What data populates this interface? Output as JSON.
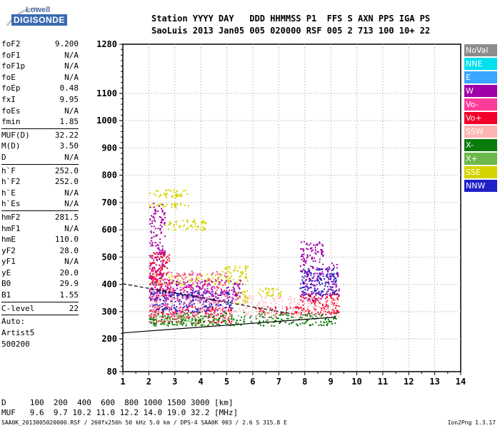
{
  "logo": {
    "line1": "Lowell",
    "line2": "DIGISONDE"
  },
  "header": {
    "line1": "Station YYYY DAY   DDD HHMMSS P1  FFS S AXN PPS IGA PS",
    "line2": "SaoLuis 2013 Jan05 005 020000 RSF 005 2 713 100 10+ 22"
  },
  "params": [
    {
      "name": "foF2",
      "value": "9.200"
    },
    {
      "name": "foF1",
      "value": "N/A"
    },
    {
      "name": "foF1p",
      "value": "N/A"
    },
    {
      "name": "foE",
      "value": "N/A"
    },
    {
      "name": "foEp",
      "value": "0.48"
    },
    {
      "name": "fxI",
      "value": "9.95"
    },
    {
      "name": "foEs",
      "value": "N/A"
    },
    {
      "name": "fmin",
      "value": "1.85"
    },
    {
      "name": "MUF(D)",
      "value": "32.22"
    },
    {
      "name": "M(D)",
      "value": "3.50"
    },
    {
      "name": "D",
      "value": "N/A"
    },
    {
      "name": "h`F",
      "value": "252.0"
    },
    {
      "name": "h`F2",
      "value": "252.0"
    },
    {
      "name": "h`E",
      "value": "N/A"
    },
    {
      "name": "h`Es",
      "value": "N/A"
    },
    {
      "name": "hmF2",
      "value": "281.5"
    },
    {
      "name": "hmF1",
      "value": "N/A"
    },
    {
      "name": "hmE",
      "value": "110.0"
    },
    {
      "name": "yF2",
      "value": "28.0"
    },
    {
      "name": "yF1",
      "value": "N/A"
    },
    {
      "name": "yE",
      "value": "20.0"
    },
    {
      "name": "B0",
      "value": "29.9"
    },
    {
      "name": "B1",
      "value": "1.55"
    },
    {
      "name": "C-level",
      "value": "22"
    }
  ],
  "auto": {
    "line1": "Auto:",
    "line2": "Artist5",
    "line3": "500200"
  },
  "legend": [
    {
      "label": "NoVal",
      "color": "#8c8c8c"
    },
    {
      "label": "NNE",
      "color": "#00e0f0"
    },
    {
      "label": "E",
      "color": "#3aa6ff"
    },
    {
      "label": "W",
      "color": "#a000a8"
    },
    {
      "label": "Vo-",
      "color": "#ff3c9a"
    },
    {
      "label": "Vo+",
      "color": "#f0002a"
    },
    {
      "label": "SSW",
      "color": "#ffb4b4"
    },
    {
      "label": "X-",
      "color": "#0a7a0a"
    },
    {
      "label": "X+",
      "color": "#6cb84c"
    },
    {
      "label": "SSE",
      "color": "#d4d400"
    },
    {
      "label": "NNW",
      "color": "#2020c8"
    }
  ],
  "chart_data": {
    "type": "scatter",
    "xlabel": "",
    "ylabel": "",
    "xlim": [
      1,
      14
    ],
    "ylim": [
      80,
      1280
    ],
    "x_ticks": [
      1,
      2,
      3,
      4,
      5,
      6,
      7,
      8,
      9,
      10,
      11,
      12,
      13,
      14
    ],
    "y_ticks": [
      80,
      200,
      300,
      400,
      500,
      600,
      700,
      800,
      900,
      1000,
      1100,
      1280
    ],
    "grid": "dotted",
    "legend_position": "right",
    "clusters": [
      {
        "mode": "SSE",
        "color": "#d4d400",
        "x": [
          2.0,
          3.5
        ],
        "y": [
          720,
          750
        ]
      },
      {
        "mode": "SSE",
        "color": "#d4d400",
        "x": [
          2.0,
          3.5
        ],
        "y": [
          680,
          700
        ]
      },
      {
        "mode": "SSE",
        "color": "#d4d400",
        "x": [
          2.0,
          5.8
        ],
        "y": [
          400,
          440
        ]
      },
      {
        "mode": "SSE",
        "color": "#d4d400",
        "x": [
          5.3,
          5.8
        ],
        "y": [
          330,
          380
        ]
      },
      {
        "mode": "SSE",
        "color": "#d4d400",
        "x": [
          6.2,
          7.1
        ],
        "y": [
          360,
          390
        ]
      },
      {
        "mode": "SSE",
        "color": "#d4d400",
        "x": [
          4.8,
          5.8
        ],
        "y": [
          440,
          470
        ]
      },
      {
        "mode": "SSE",
        "color": "#d4d400",
        "x": [
          2.6,
          4.2
        ],
        "y": [
          600,
          640
        ]
      },
      {
        "mode": "W",
        "color": "#a000a8",
        "x": [
          2.0,
          5.6
        ],
        "y": [
          340,
          420
        ]
      },
      {
        "mode": "W",
        "color": "#a000a8",
        "x": [
          2.0,
          2.6
        ],
        "y": [
          420,
          700
        ]
      },
      {
        "mode": "W",
        "color": "#a000a8",
        "x": [
          7.8,
          8.7
        ],
        "y": [
          340,
          560
        ]
      },
      {
        "mode": "W",
        "color": "#a000a8",
        "x": [
          8.8,
          9.3
        ],
        "y": [
          350,
          480
        ]
      },
      {
        "mode": "Vo+",
        "color": "#f0002a",
        "x": [
          2.0,
          5.2
        ],
        "y": [
          260,
          320
        ]
      },
      {
        "mode": "Vo+",
        "color": "#f0002a",
        "x": [
          6.0,
          9.3
        ],
        "y": [
          290,
          320
        ]
      },
      {
        "mode": "Vo+",
        "color": "#f0002a",
        "x": [
          7.8,
          9.3
        ],
        "y": [
          320,
          370
        ]
      },
      {
        "mode": "Vo+",
        "color": "#f0002a",
        "x": [
          2.0,
          2.8
        ],
        "y": [
          360,
          520
        ]
      },
      {
        "mode": "NNW",
        "color": "#2020c8",
        "x": [
          2.0,
          5.2
        ],
        "y": [
          300,
          380
        ]
      },
      {
        "mode": "NNW",
        "color": "#2020c8",
        "x": [
          7.8,
          9.2
        ],
        "y": [
          360,
          460
        ]
      },
      {
        "mode": "X+",
        "color": "#6cb84c",
        "x": [
          2.0,
          5.5
        ],
        "y": [
          250,
          290
        ]
      },
      {
        "mode": "X-",
        "color": "#0a7a0a",
        "x": [
          2.0,
          9.2
        ],
        "y": [
          250,
          300
        ]
      },
      {
        "mode": "Vo-",
        "color": "#ff3c9a",
        "x": [
          2.0,
          5.0
        ],
        "y": [
          280,
          450
        ]
      },
      {
        "mode": "SSW",
        "color": "#ffb4b4",
        "x": [
          2.0,
          9.3
        ],
        "y": [
          280,
          360
        ]
      }
    ],
    "fit_curves": [
      {
        "style": "solid",
        "x": [
          1.0,
          9.2
        ],
        "y": [
          222,
          280
        ]
      },
      {
        "style": "dashed",
        "x": [
          1.0,
          7.5
        ],
        "y": [
          402,
          292
        ]
      }
    ]
  },
  "footer": {
    "d_line": "D     100  200  400  600  800 1000 1500 3000 [km]",
    "muf_line": "MUF   9.6  9.7 10.2 11.0 12.2 14.0 19.0 32.2 [MHz]",
    "file_line": "SAA0K_2013005020000.RSF / 260fx256h 50 kHz 5.0 km / DPS-4 SAA0K 903 / 2.6 S 315.8 E",
    "version": "Ion2Png 1.3.17"
  }
}
